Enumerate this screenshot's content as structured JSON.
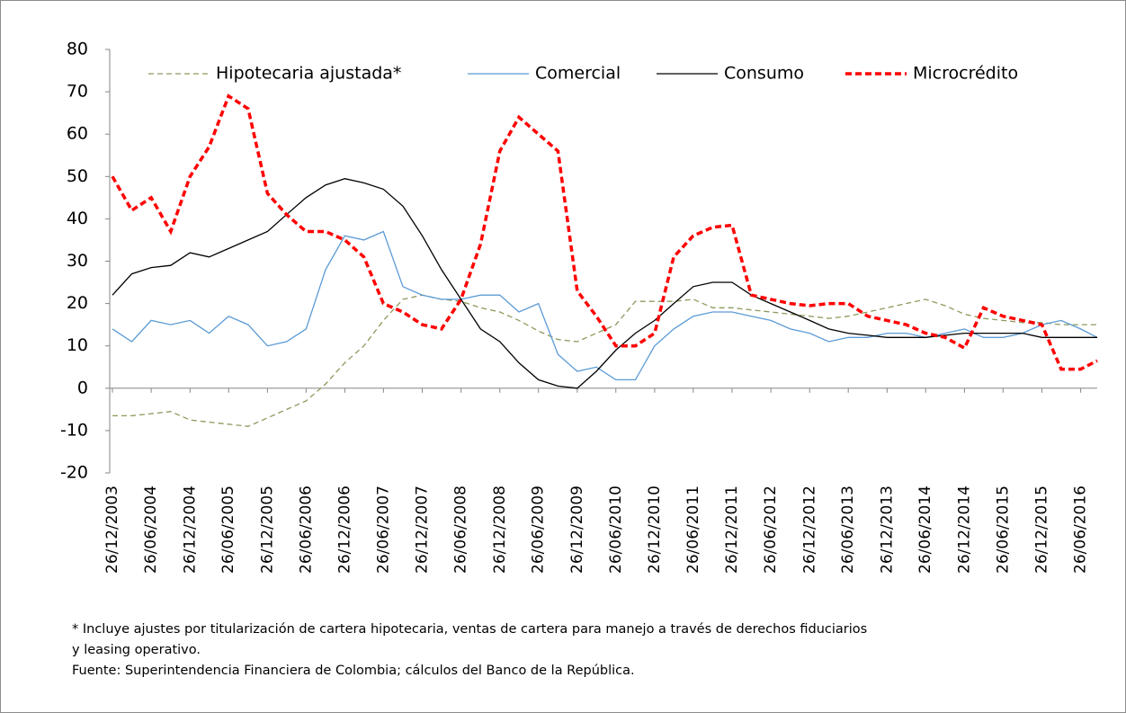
{
  "chart_data": {
    "type": "line",
    "x": [
      "26/12/2003",
      "26/03/2004",
      "26/06/2004",
      "26/09/2004",
      "26/12/2004",
      "26/03/2005",
      "26/06/2005",
      "26/09/2005",
      "26/12/2005",
      "26/03/2006",
      "26/06/2006",
      "26/09/2006",
      "26/12/2006",
      "26/03/2007",
      "26/06/2007",
      "26/09/2007",
      "26/12/2007",
      "26/03/2008",
      "26/06/2008",
      "26/09/2008",
      "26/12/2008",
      "26/03/2009",
      "26/06/2009",
      "26/09/2009",
      "26/12/2009",
      "26/03/2010",
      "26/06/2010",
      "26/09/2010",
      "26/12/2010",
      "26/03/2011",
      "26/06/2011",
      "26/09/2011",
      "26/12/2011",
      "26/03/2012",
      "26/06/2012",
      "26/09/2012",
      "26/12/2012",
      "26/03/2013",
      "26/06/2013",
      "26/09/2013",
      "26/12/2013",
      "26/03/2014",
      "26/06/2014",
      "26/09/2014",
      "26/12/2014",
      "26/03/2015",
      "26/06/2015",
      "26/09/2015",
      "26/12/2015",
      "26/03/2016",
      "26/06/2016",
      "12/09/2016"
    ],
    "series": [
      {
        "name": "Hipotecaria ajustada*",
        "color": "#8a9a5b",
        "dash": "6,4",
        "width": 1.3,
        "values": [
          -6.5,
          -6.5,
          -6,
          -5.5,
          -7.5,
          -8,
          -8.5,
          -9,
          -7,
          -5,
          -3,
          1,
          6,
          10,
          16,
          21,
          22,
          21,
          20.5,
          19,
          18,
          16,
          13.5,
          11.5,
          11,
          13,
          15,
          20.5,
          20.5,
          20.5,
          21,
          19,
          19,
          18.5,
          18,
          17.5,
          17,
          16.5,
          17,
          18,
          19,
          20,
          21,
          19.5,
          17.5,
          16.5,
          16,
          15.5,
          15.5,
          15,
          15,
          15
        ]
      },
      {
        "name": "Comercial",
        "color": "#5b9bd5",
        "dash": "none",
        "width": 1.3,
        "values": [
          14,
          11,
          16,
          15,
          16,
          13,
          17,
          15,
          10,
          11,
          14,
          28,
          36,
          35,
          37,
          24,
          22,
          21,
          21,
          22,
          22,
          18,
          20,
          8,
          4,
          5,
          2,
          2,
          10,
          14,
          17,
          18,
          18,
          17,
          16,
          14,
          13,
          11,
          12,
          12,
          13,
          13,
          12,
          13,
          14,
          12,
          12,
          13,
          15,
          16,
          14,
          12
        ]
      },
      {
        "name": "Consumo",
        "color": "#000000",
        "dash": "none",
        "width": 1.3,
        "values": [
          22,
          27,
          28.5,
          29,
          32,
          31,
          33,
          35,
          37,
          41,
          45,
          48,
          49.5,
          48.5,
          47,
          43,
          36,
          28,
          21,
          14,
          11,
          6,
          2,
          0.5,
          0,
          4,
          9,
          13,
          16,
          20,
          24,
          25,
          25,
          22,
          20,
          18,
          16,
          14,
          13,
          12.5,
          12,
          12,
          12,
          12.5,
          13,
          13,
          13,
          13,
          12,
          12,
          12,
          12
        ]
      },
      {
        "name": "Microcrédito",
        "color": "#ff0000",
        "dash": "7,4",
        "width": 3.5,
        "values": [
          50,
          42,
          45,
          37,
          50,
          57,
          69,
          66,
          46,
          41,
          37,
          37,
          35,
          31,
          20,
          18,
          15,
          14,
          21,
          34,
          56,
          64,
          60,
          56,
          23,
          17,
          10,
          10,
          13,
          31,
          36,
          38,
          38.5,
          22,
          21,
          20,
          19.5,
          20,
          20,
          17,
          16,
          15,
          13,
          12,
          9.5,
          19,
          17,
          16,
          15,
          4.5,
          4.5,
          6.5
        ]
      }
    ],
    "xlim": [
      "26/12/2003",
      "12/09/2016"
    ],
    "xticks": [
      "26/12/2003",
      "26/06/2004",
      "26/12/2004",
      "26/06/2005",
      "26/12/2005",
      "26/06/2006",
      "26/12/2006",
      "26/06/2007",
      "26/12/2007",
      "26/06/2008",
      "26/12/2008",
      "26/06/2009",
      "26/12/2009",
      "26/06/2010",
      "26/12/2010",
      "26/06/2011",
      "26/12/2011",
      "26/06/2012",
      "26/12/2012",
      "26/06/2013",
      "26/12/2013",
      "26/06/2014",
      "26/12/2014",
      "26/06/2015",
      "26/12/2015",
      "26/06/2016"
    ],
    "ylim": [
      -20,
      80
    ],
    "yticks": [
      -20,
      -10,
      0,
      10,
      20,
      30,
      40,
      50,
      60,
      70,
      80
    ],
    "grid": false,
    "notes": [
      "* Incluye ajustes por titularización de cartera hipotecaria, ventas de cartera para manejo a través de derechos fiduciarios",
      "y leasing operativo.",
      "Fuente: Superintendencia Financiera de Colombia; cálculos del Banco de la República."
    ]
  }
}
